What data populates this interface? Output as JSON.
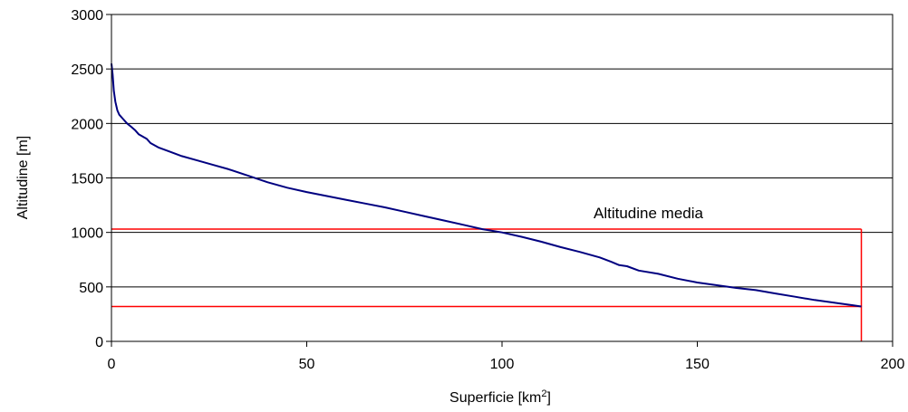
{
  "chart_data": {
    "type": "line",
    "title": "",
    "xlabel": "Superficie [km",
    "xlabel_sup": "2",
    "xlabel_end": "]",
    "ylabel": "Altitudine [m]",
    "xlim": [
      0,
      200
    ],
    "ylim": [
      0,
      3000
    ],
    "x_ticks": [
      0,
      50,
      100,
      150,
      200
    ],
    "y_ticks": [
      0,
      500,
      1000,
      1500,
      2000,
      2500,
      3000
    ],
    "x_tick_labels": [
      "0",
      "50",
      "100",
      "150",
      "200"
    ],
    "y_tick_labels": [
      "0",
      "500",
      "1000",
      "1500",
      "2000",
      "2500",
      "3000"
    ],
    "grid": "horizontal",
    "series": [
      {
        "color": "#000080",
        "points": [
          [
            0,
            2550
          ],
          [
            0.3,
            2450
          ],
          [
            0.6,
            2300
          ],
          [
            1,
            2200
          ],
          [
            1.5,
            2120
          ],
          [
            2,
            2080
          ],
          [
            3,
            2040
          ],
          [
            4,
            2000
          ],
          [
            5,
            1970
          ],
          [
            6,
            1940
          ],
          [
            7,
            1900
          ],
          [
            9,
            1860
          ],
          [
            10,
            1820
          ],
          [
            12,
            1780
          ],
          [
            15,
            1740
          ],
          [
            18,
            1700
          ],
          [
            22,
            1660
          ],
          [
            26,
            1620
          ],
          [
            30,
            1580
          ],
          [
            35,
            1520
          ],
          [
            40,
            1460
          ],
          [
            45,
            1410
          ],
          [
            50,
            1370
          ],
          [
            55,
            1335
          ],
          [
            60,
            1300
          ],
          [
            65,
            1265
          ],
          [
            70,
            1230
          ],
          [
            75,
            1190
          ],
          [
            80,
            1150
          ],
          [
            85,
            1110
          ],
          [
            90,
            1070
          ],
          [
            95,
            1030
          ],
          [
            100,
            1000
          ],
          [
            105,
            960
          ],
          [
            110,
            915
          ],
          [
            115,
            865
          ],
          [
            120,
            820
          ],
          [
            125,
            770
          ],
          [
            128,
            730
          ],
          [
            130,
            700
          ],
          [
            132,
            690
          ],
          [
            135,
            650
          ],
          [
            140,
            620
          ],
          [
            145,
            575
          ],
          [
            150,
            540
          ],
          [
            155,
            515
          ],
          [
            160,
            490
          ],
          [
            165,
            470
          ],
          [
            170,
            440
          ],
          [
            175,
            410
          ],
          [
            180,
            380
          ],
          [
            185,
            355
          ],
          [
            190,
            330
          ],
          [
            192,
            320
          ]
        ]
      }
    ],
    "reference_lines": {
      "color": "#ff0000",
      "mean_altitude": 1030,
      "min_altitude": 320,
      "max_area": 192
    },
    "annotation": "Altitudine media"
  }
}
